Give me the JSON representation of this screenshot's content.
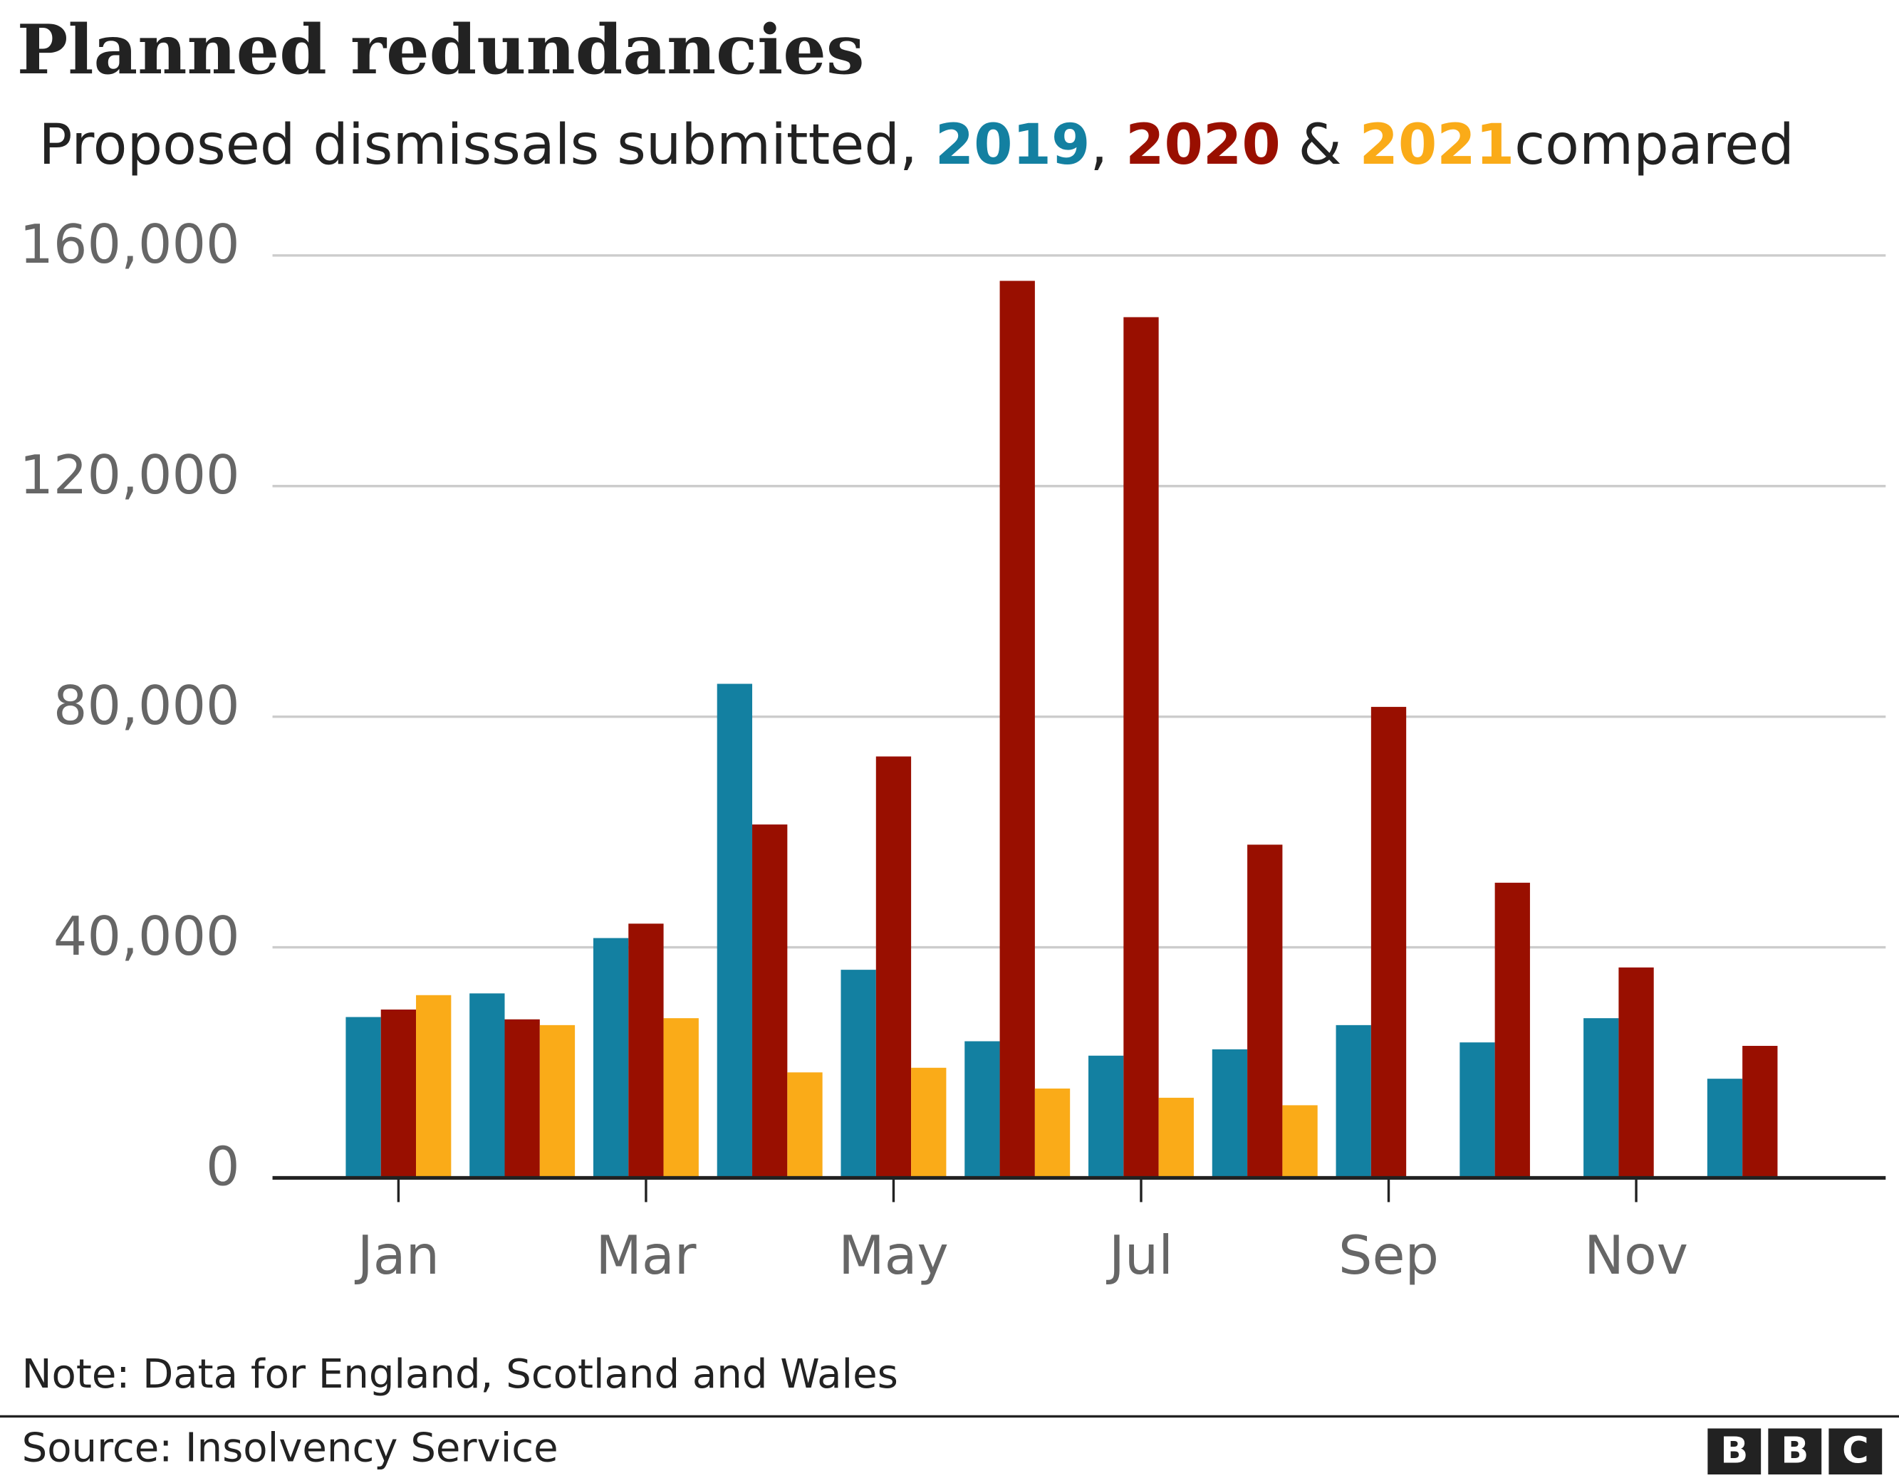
{
  "chart_data": {
    "type": "bar",
    "title": "Planned redundancies",
    "subtitle_parts": [
      "Proposed dismissals submitted, ",
      ", ",
      " & ",
      "compared"
    ],
    "categories": [
      "Jan",
      null,
      "Mar",
      null,
      "May",
      null,
      "Jul",
      null,
      "Sep",
      null,
      "Nov",
      null
    ],
    "series": [
      {
        "name": "2019",
        "color": "#1380a1",
        "values": [
          27900,
          32000,
          41600,
          85700,
          36100,
          23700,
          21200,
          22300,
          26500,
          23500,
          27700,
          17200
        ]
      },
      {
        "name": "2020",
        "color": "#990f00",
        "values": [
          29200,
          27500,
          44100,
          61300,
          73100,
          155600,
          149300,
          57800,
          81700,
          51200,
          36500,
          22900
        ]
      },
      {
        "name": "2021",
        "color": "#faab18",
        "values": [
          31700,
          26500,
          27700,
          18300,
          19100,
          15500,
          13900,
          12600,
          null,
          null,
          null,
          null
        ]
      }
    ],
    "ylim": [
      0,
      160000
    ],
    "yticks": [
      0,
      {
        "value": 40000,
        "label": "40,000"
      },
      {
        "value": 80000,
        "label": "80,000"
      },
      {
        "value": 120000,
        "label": "120,000"
      },
      {
        "value": 160000,
        "label": "160,000"
      }
    ],
    "grid": true,
    "note": "Note: Data for England, Scotland and Wales",
    "source": "Source: Insolvency Service",
    "logo": "BBC"
  }
}
